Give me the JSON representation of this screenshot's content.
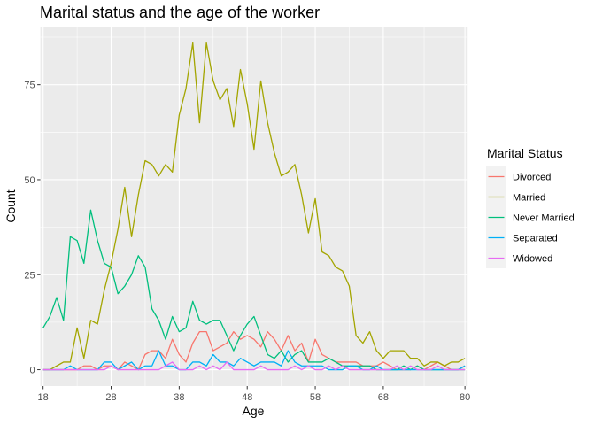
{
  "chart_data": {
    "type": "line",
    "title": "Marital status and the age of the worker",
    "xlabel": "Age",
    "ylabel": "Count",
    "xlim": [
      17.6,
      80.4
    ],
    "ylim": [
      -4.3,
      90.3
    ],
    "x_ticks": [
      18,
      28,
      38,
      48,
      58,
      68,
      80
    ],
    "x_tick_labels": [
      "18",
      "28",
      "38",
      "48",
      "58",
      "68",
      "80"
    ],
    "y_ticks": [
      0,
      25,
      50,
      75
    ],
    "y_tick_labels": [
      "0",
      "25",
      "50",
      "75"
    ],
    "grid": true,
    "legend": {
      "title": "Marital Status",
      "position": "right"
    },
    "x": [
      18,
      19,
      20,
      21,
      22,
      23,
      24,
      25,
      26,
      27,
      28,
      29,
      30,
      31,
      32,
      33,
      34,
      35,
      36,
      37,
      38,
      39,
      40,
      41,
      42,
      43,
      44,
      45,
      46,
      47,
      48,
      49,
      50,
      51,
      52,
      53,
      54,
      55,
      56,
      57,
      58,
      59,
      60,
      61,
      62,
      63,
      64,
      65,
      66,
      67,
      68,
      69,
      70,
      71,
      72,
      73,
      74,
      75,
      76,
      77,
      78,
      79,
      80
    ],
    "series": [
      {
        "name": "Divorced",
        "color": "#F8766D",
        "values": [
          0,
          0,
          0,
          0,
          0,
          0,
          1,
          1,
          0,
          1,
          1,
          0,
          2,
          1,
          0,
          4,
          5,
          5,
          3,
          8,
          4,
          2,
          7,
          10,
          10,
          5,
          6,
          7,
          10,
          8,
          9,
          8,
          6,
          10,
          8,
          5,
          9,
          5,
          7,
          2,
          8,
          4,
          3,
          2,
          2,
          2,
          2,
          1,
          1,
          1,
          2,
          1,
          0,
          0,
          0,
          1,
          0,
          1,
          2,
          1,
          0,
          0,
          1
        ]
      },
      {
        "name": "Married",
        "color": "#A3A500",
        "values": [
          0,
          0,
          1,
          2,
          2,
          11,
          3,
          13,
          12,
          21,
          28,
          37,
          48,
          35,
          46,
          55,
          54,
          51,
          54,
          52,
          67,
          74,
          86,
          65,
          86,
          76,
          71,
          74,
          64,
          79,
          70,
          58,
          76,
          65,
          57,
          51,
          52,
          54,
          46,
          36,
          45,
          31,
          30,
          27,
          26,
          22,
          9,
          7,
          10,
          5,
          3,
          5,
          5,
          5,
          3,
          3,
          1,
          2,
          2,
          1,
          2,
          2,
          3
        ]
      },
      {
        "name": "Never Married",
        "color": "#00BF7D",
        "values": [
          11,
          14,
          19,
          13,
          35,
          34,
          28,
          42,
          34,
          28,
          27,
          20,
          22,
          25,
          30,
          27,
          16,
          13,
          8,
          14,
          10,
          11,
          18,
          13,
          12,
          13,
          13,
          9,
          5,
          9,
          12,
          14,
          9,
          4,
          3,
          5,
          2,
          4,
          5,
          2,
          2,
          2,
          3,
          2,
          1,
          1,
          1,
          1,
          1,
          0,
          0,
          0,
          0,
          1,
          0,
          1,
          0,
          0,
          0,
          0,
          0,
          0,
          0
        ]
      },
      {
        "name": "Separated",
        "color": "#00B0F6",
        "values": [
          0,
          0,
          0,
          0,
          1,
          0,
          0,
          0,
          0,
          2,
          2,
          0,
          1,
          2,
          0,
          1,
          1,
          5,
          1,
          1,
          0,
          0,
          2,
          2,
          1,
          4,
          2,
          2,
          1,
          3,
          2,
          1,
          2,
          2,
          2,
          1,
          5,
          2,
          1,
          1,
          1,
          1,
          0,
          0,
          0,
          1,
          1,
          0,
          0,
          1,
          0,
          0,
          0,
          0,
          0,
          0,
          0,
          0,
          0,
          0,
          0,
          0,
          1
        ]
      },
      {
        "name": "Widowed",
        "color": "#E76BF3",
        "values": [
          0,
          0,
          0,
          0,
          0,
          0,
          0,
          0,
          0,
          0,
          1,
          0,
          0,
          0,
          0,
          0,
          0,
          0,
          1,
          2,
          0,
          0,
          0,
          1,
          0,
          1,
          0,
          2,
          0,
          0,
          0,
          0,
          1,
          0,
          0,
          0,
          0,
          1,
          0,
          1,
          0,
          0,
          1,
          0,
          1,
          0,
          0,
          0,
          0,
          0,
          0,
          0,
          1,
          0,
          1,
          0,
          0,
          0,
          1,
          0,
          0,
          0,
          0
        ]
      }
    ]
  }
}
